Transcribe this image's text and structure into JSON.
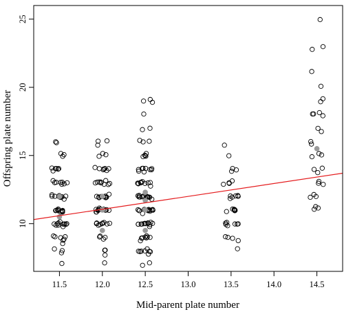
{
  "chart_data": {
    "type": "scatter",
    "title": "",
    "xlabel": "Mid-parent plate number",
    "ylabel": "Offspring plate number",
    "xlim": [
      11.2,
      14.8
    ],
    "ylim": [
      6.5,
      26
    ],
    "xticks": [
      "11.5",
      "12.0",
      "12.5",
      "13.0",
      "13.5",
      "14.0",
      "14.5"
    ],
    "yticks": [
      "10",
      "15",
      "20",
      "25"
    ],
    "grid": false,
    "legend": "none",
    "colors": {
      "points": "#000000",
      "means": "#9a9a9a",
      "regression": "#e41a1c"
    },
    "regression": {
      "x": [
        11.2,
        14.8
      ],
      "y": [
        10.3,
        13.7
      ]
    },
    "means": [
      {
        "x": 11.5,
        "y": 10.5
      },
      {
        "x": 11.5,
        "y": 12.0
      },
      {
        "x": 12.0,
        "y": 9.5
      },
      {
        "x": 12.0,
        "y": 11.0
      },
      {
        "x": 12.0,
        "y": 12.0
      },
      {
        "x": 12.5,
        "y": 9.5
      },
      {
        "x": 12.5,
        "y": 11.0
      },
      {
        "x": 12.5,
        "y": 11.7
      },
      {
        "x": 12.5,
        "y": 12.3
      },
      {
        "x": 14.5,
        "y": 15.5
      }
    ],
    "groups": [
      {
        "x": 11.5,
        "y": [
          7.1,
          7.8,
          8.0,
          8.1,
          8.5,
          8.8,
          8.9,
          9.0,
          9.0,
          9.0,
          9.1,
          9.8,
          9.9,
          9.9,
          9.9,
          10.0,
          10.0,
          10.0,
          10.0,
          10.0,
          10.0,
          10.0,
          10.1,
          10.9,
          10.9,
          10.9,
          11.0,
          11.0,
          11.0,
          11.0,
          11.0,
          11.0,
          11.0,
          11.1,
          11.8,
          11.9,
          11.9,
          12.0,
          12.0,
          12.0,
          12.0,
          12.0,
          12.0,
          12.1,
          12.9,
          12.9,
          13.0,
          13.0,
          13.0,
          13.0,
          13.0,
          13.1,
          13.9,
          14.0,
          14.0,
          14.0,
          14.0,
          14.1,
          14.9,
          15.0,
          15.1,
          16.0,
          16.0
        ]
      },
      {
        "x": 12.0,
        "y": [
          7.1,
          7.7,
          8.0,
          8.1,
          8.9,
          9.0,
          9.0,
          9.1,
          9.9,
          10.0,
          10.0,
          10.0,
          10.0,
          10.0,
          10.0,
          10.0,
          10.1,
          10.9,
          10.9,
          11.0,
          11.0,
          11.0,
          11.0,
          11.0,
          11.0,
          11.0,
          11.0,
          11.0,
          11.1,
          11.9,
          11.9,
          11.9,
          12.0,
          12.0,
          12.0,
          12.0,
          12.0,
          12.0,
          12.0,
          12.0,
          12.1,
          12.9,
          12.9,
          13.0,
          13.0,
          13.0,
          13.0,
          13.0,
          13.0,
          13.1,
          13.9,
          14.0,
          14.0,
          14.0,
          14.0,
          14.0,
          14.1,
          14.9,
          15.0,
          15.1,
          15.8,
          16.0,
          16.1
        ]
      },
      {
        "x": 12.5,
        "y": [
          6.9,
          7.1,
          7.8,
          7.9,
          8.0,
          8.0,
          8.0,
          8.0,
          8.0,
          8.1,
          8.8,
          8.9,
          9.0,
          9.0,
          9.0,
          9.0,
          9.0,
          9.1,
          9.8,
          9.9,
          9.9,
          10.0,
          10.0,
          10.0,
          10.0,
          10.0,
          10.0,
          10.0,
          10.0,
          10.0,
          10.1,
          10.8,
          10.9,
          10.9,
          11.0,
          11.0,
          11.0,
          11.0,
          11.0,
          11.0,
          11.0,
          11.0,
          11.0,
          11.0,
          11.1,
          11.8,
          11.9,
          11.9,
          12.0,
          12.0,
          12.0,
          12.0,
          12.0,
          12.0,
          12.0,
          12.0,
          12.0,
          12.0,
          12.1,
          12.8,
          12.9,
          12.9,
          13.0,
          13.0,
          13.0,
          13.0,
          13.0,
          13.0,
          13.0,
          13.1,
          13.8,
          13.9,
          14.0,
          14.0,
          14.0,
          14.0,
          14.0,
          14.0,
          14.1,
          14.9,
          15.0,
          15.0,
          15.0,
          15.1,
          16.0,
          16.0,
          16.1,
          16.9,
          17.0,
          18.0,
          18.9,
          19.0,
          19.1
        ]
      },
      {
        "x": 13.5,
        "y": [
          8.1,
          8.8,
          8.9,
          9.0,
          9.0,
          9.9,
          10.0,
          10.0,
          10.0,
          10.0,
          10.0,
          10.1,
          10.9,
          11.0,
          11.0,
          11.0,
          11.0,
          11.0,
          11.1,
          11.9,
          12.0,
          12.0,
          12.0,
          12.0,
          12.1,
          12.9,
          13.0,
          13.0,
          13.1,
          13.9,
          14.0,
          14.1,
          15.0,
          15.8
        ]
      },
      {
        "x": 14.5,
        "y": [
          11.0,
          11.1,
          11.2,
          11.9,
          12.0,
          12.1,
          12.9,
          13.0,
          13.1,
          13.8,
          14.0,
          14.1,
          14.9,
          15.0,
          15.1,
          15.8,
          16.0,
          16.8,
          17.0,
          17.9,
          18.0,
          18.0,
          18.1,
          19.0,
          19.1,
          20.1,
          21.2,
          22.8,
          23.0,
          25.0
        ]
      }
    ]
  }
}
